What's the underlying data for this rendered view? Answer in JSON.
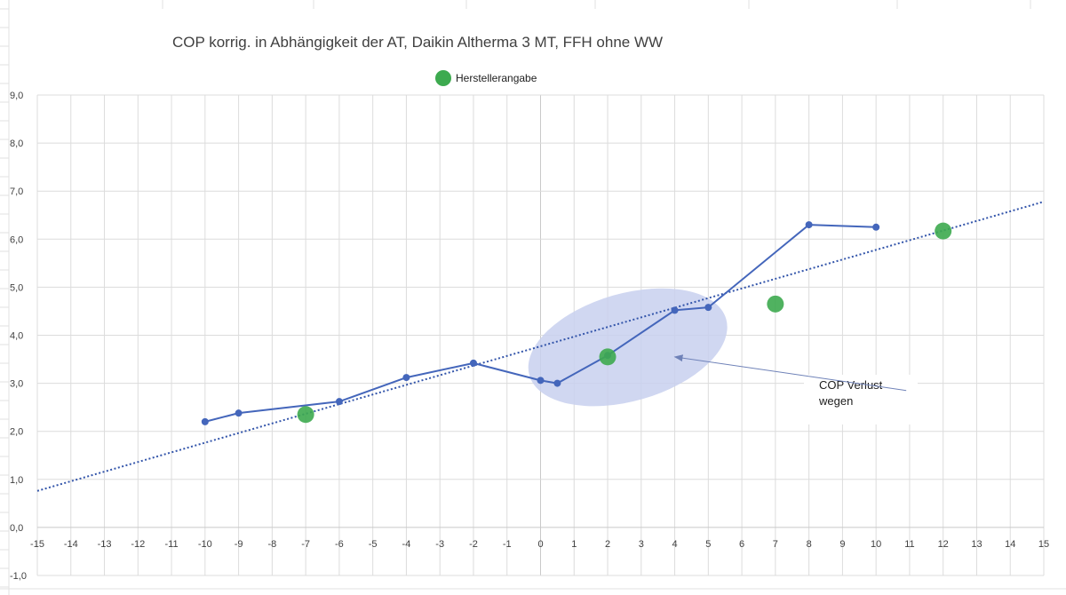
{
  "chart_data": {
    "type": "line",
    "title": "COP korrig. in Abhängigkeit der AT,  Daikin  Altherma 3 MT, FFH ohne WW",
    "xlabel": "",
    "ylabel": "",
    "xlim": [
      -15,
      15
    ],
    "ylim": [
      -1.0,
      9.0
    ],
    "x_ticks": [
      "-15",
      "-14",
      "-13",
      "-12",
      "-11",
      "-10",
      "-9",
      "-8",
      "-7",
      "-6",
      "-5",
      "-4",
      "-3",
      "-2",
      "-1",
      "0",
      "1",
      "2",
      "3",
      "4",
      "5",
      "6",
      "7",
      "8",
      "9",
      "10",
      "11",
      "12",
      "13",
      "14",
      "15"
    ],
    "y_ticks": [
      "-1,0",
      "0,0",
      "1,0",
      "2,0",
      "3,0",
      "4,0",
      "5,0",
      "6,0",
      "7,0",
      "8,0",
      "9,0"
    ],
    "grid": true,
    "legend_position": "top-center",
    "series": [
      {
        "color": "#4466bb",
        "style": "line-markers",
        "points": [
          {
            "x": -10,
            "y": 2.2
          },
          {
            "x": -9,
            "y": 2.38
          },
          {
            "x": -6,
            "y": 2.62
          },
          {
            "x": -4,
            "y": 3.12
          },
          {
            "x": -2,
            "y": 3.42
          },
          {
            "x": 0,
            "y": 3.06
          },
          {
            "x": 0.5,
            "y": 3.0
          },
          {
            "x": 2,
            "y": 3.58
          },
          {
            "x": 4,
            "y": 4.52
          },
          {
            "x": 5,
            "y": 4.58
          },
          {
            "x": 8,
            "y": 6.3
          },
          {
            "x": 10,
            "y": 6.25
          }
        ]
      },
      {
        "name": "Herstellerangabe",
        "color": "#3daa4f",
        "style": "markers",
        "points": [
          {
            "x": -7,
            "y": 2.35
          },
          {
            "x": 2,
            "y": 3.55
          },
          {
            "x": 7,
            "y": 4.65
          },
          {
            "x": 12,
            "y": 6.17
          }
        ]
      }
    ],
    "trendline": {
      "type": "linear",
      "style": "dotted",
      "color": "#3355aa",
      "x_range": [
        -15,
        15
      ],
      "y_at_x_min": 0.76,
      "y_at_x_max": 6.78
    },
    "annotation": {
      "lines": [
        "COP Verlust",
        "wegen"
      ],
      "highlight_color": "#c8d0ee",
      "highlight_center": {
        "x": 2.6,
        "y": 3.75
      },
      "highlight_radius": {
        "x": 3.05,
        "y": 1.12
      },
      "highlight_rotation_deg": -16,
      "arrow_target": {
        "x": 4.0,
        "y": 3.55
      },
      "arrow_tail": {
        "x": 10.9,
        "y": 2.85
      }
    }
  }
}
